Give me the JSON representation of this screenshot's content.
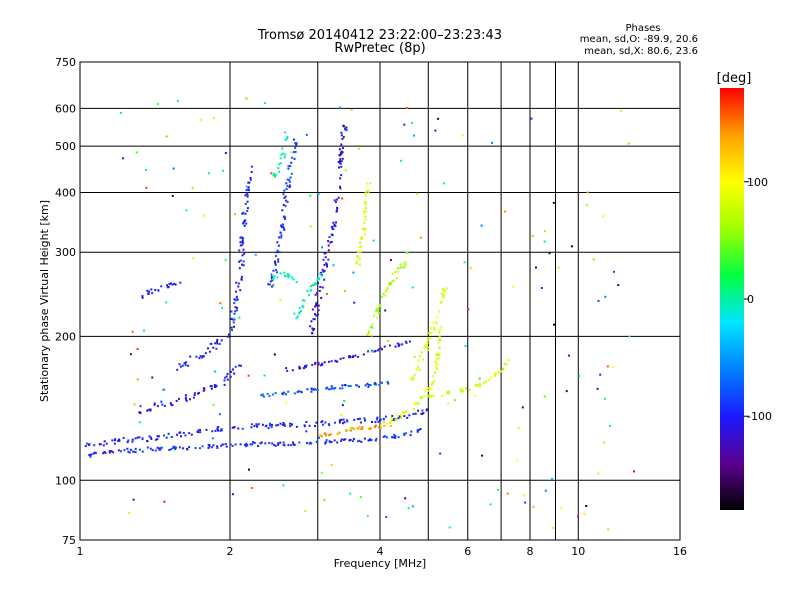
{
  "chart_data": {
    "type": "scatter",
    "title": "Tromsø 20140412 23:22:00–23:23:43",
    "subtitle": "RwPretec (8p)",
    "xlabel": "Frequency [MHz]",
    "ylabel": "Stationary phase Virtual Height [km]",
    "x_scale": "log",
    "y_scale": "log",
    "xlim": [
      1,
      16
    ],
    "ylim": [
      75,
      750
    ],
    "x_ticks": [
      1,
      2,
      4,
      6,
      8,
      10,
      16
    ],
    "x_tick_labels": [
      "1",
      "2",
      "4",
      "6",
      "8",
      "10",
      "16"
    ],
    "x_minor_grid": [
      3,
      5,
      7,
      9
    ],
    "y_ticks": [
      75,
      100,
      200,
      300,
      400,
      500,
      600,
      750
    ],
    "y_tick_labels": [
      "75",
      "100",
      "200",
      "300",
      "400",
      "500",
      "600",
      "750"
    ],
    "grid": true,
    "colorbar": {
      "label": "[deg]",
      "range": [
        -180,
        180
      ],
      "ticks": [
        100,
        0,
        -100
      ],
      "tick_labels": [
        "100",
        "0",
        "-100"
      ],
      "colors": [
        "#000000",
        "#5a0090",
        "#1a1aff",
        "#0080ff",
        "#00e5ff",
        "#00ff40",
        "#a0ff00",
        "#ffff00",
        "#ffa000",
        "#ff0000"
      ]
    },
    "stats": {
      "title": "Phases",
      "line1": "mean, sd,O: -89.9, 20.6",
      "line2": "mean, sd,X:  80.6, 23.6"
    },
    "traces": [
      {
        "points": [
          [
            1.02,
            112
          ],
          [
            1.06,
            113
          ],
          [
            1.1,
            114
          ],
          [
            1.2,
            115
          ],
          [
            1.35,
            116
          ],
          [
            1.5,
            116.5
          ],
          [
            1.7,
            117
          ],
          [
            1.9,
            118
          ],
          [
            2.0,
            118.5
          ],
          [
            2.2,
            119
          ],
          [
            2.5,
            119
          ],
          [
            2.8,
            120
          ],
          [
            3.2,
            120.5
          ],
          [
            3.6,
            121
          ],
          [
            4.0,
            122
          ],
          [
            4.4,
            124
          ],
          [
            4.8,
            127
          ]
        ],
        "phase": -95,
        "spread": 0.012
      },
      {
        "points": [
          [
            1.02,
            118
          ],
          [
            1.1,
            119
          ],
          [
            1.2,
            121
          ],
          [
            1.35,
            122
          ],
          [
            1.5,
            124
          ],
          [
            1.7,
            126
          ],
          [
            1.9,
            128
          ],
          [
            2.1,
            129
          ],
          [
            2.4,
            130
          ],
          [
            2.8,
            131
          ],
          [
            3.2,
            132
          ],
          [
            3.6,
            133
          ],
          [
            4.0,
            134
          ],
          [
            4.5,
            136
          ],
          [
            5.0,
            140
          ]
        ],
        "phase": -100,
        "spread": 0.015
      },
      {
        "points": [
          [
            1.3,
            140
          ],
          [
            1.5,
            145
          ],
          [
            1.7,
            150
          ],
          [
            1.9,
            158
          ],
          [
            2.0,
            165
          ],
          [
            2.1,
            175
          ]
        ],
        "phase": -105,
        "spread": 0.02
      },
      {
        "points": [
          [
            1.55,
            170
          ],
          [
            1.7,
            180
          ],
          [
            1.85,
            190
          ],
          [
            2.0,
            200
          ],
          [
            2.05,
            230
          ],
          [
            2.1,
            270
          ],
          [
            2.12,
            320
          ],
          [
            2.15,
            380
          ],
          [
            2.2,
            450
          ]
        ],
        "phase": -100,
        "spread": 0.025
      },
      {
        "points": [
          [
            2.4,
            250
          ],
          [
            2.5,
            300
          ],
          [
            2.55,
            350
          ],
          [
            2.6,
            400
          ],
          [
            2.65,
            450
          ],
          [
            2.7,
            520
          ]
        ],
        "phase": -90,
        "spread": 0.025
      },
      {
        "points": [
          [
            2.9,
            200
          ],
          [
            3.0,
            240
          ],
          [
            3.1,
            280
          ],
          [
            3.2,
            330
          ],
          [
            3.3,
            400
          ],
          [
            3.35,
            480
          ],
          [
            3.4,
            560
          ]
        ],
        "phase": -110,
        "spread": 0.025
      },
      {
        "points": [
          [
            2.3,
            150
          ],
          [
            2.6,
            152
          ],
          [
            3.0,
            155
          ],
          [
            3.4,
            157
          ],
          [
            3.8,
            158
          ],
          [
            4.2,
            160
          ]
        ],
        "phase": -80,
        "spread": 0.01
      },
      {
        "points": [
          [
            2.6,
            170
          ],
          [
            3.0,
            175
          ],
          [
            3.4,
            180
          ],
          [
            3.8,
            185
          ],
          [
            4.2,
            190
          ],
          [
            4.6,
            195
          ]
        ],
        "phase": -110,
        "spread": 0.012
      },
      {
        "points": [
          [
            2.7,
            220
          ],
          [
            2.9,
            250
          ],
          [
            3.1,
            275
          ]
        ],
        "phase": 0,
        "spread": 0.015
      },
      {
        "points": [
          [
            2.4,
            265
          ],
          [
            2.6,
            270
          ],
          [
            2.75,
            260
          ]
        ],
        "phase": -10,
        "spread": 0.015
      },
      {
        "points": [
          [
            3.0,
            124
          ],
          [
            3.3,
            126
          ],
          [
            3.6,
            128
          ],
          [
            3.9,
            129
          ],
          [
            4.2,
            130
          ]
        ],
        "phase": 140,
        "spread": 0.012
      },
      {
        "points": [
          [
            4.0,
            130
          ],
          [
            4.3,
            135
          ],
          [
            4.6,
            140
          ],
          [
            4.9,
            150
          ],
          [
            5.1,
            160
          ],
          [
            5.2,
            175
          ],
          [
            5.25,
            190
          ],
          [
            5.3,
            210
          ]
        ],
        "phase": 80,
        "spread": 0.015
      },
      {
        "points": [
          [
            3.8,
            200
          ],
          [
            4.0,
            230
          ],
          [
            4.2,
            260
          ],
          [
            4.4,
            280
          ],
          [
            4.6,
            300
          ]
        ],
        "phase": 60,
        "spread": 0.02
      },
      {
        "points": [
          [
            3.6,
            280
          ],
          [
            3.7,
            330
          ],
          [
            3.75,
            380
          ],
          [
            3.8,
            420
          ]
        ],
        "phase": 80,
        "spread": 0.02
      },
      {
        "points": [
          [
            5.0,
            150
          ],
          [
            5.5,
            152
          ],
          [
            6.0,
            155
          ],
          [
            6.5,
            160
          ],
          [
            7.0,
            170
          ],
          [
            7.3,
            180
          ]
        ],
        "phase": 80,
        "spread": 0.01
      },
      {
        "points": [
          [
            4.6,
            160
          ],
          [
            4.8,
            175
          ],
          [
            5.0,
            195
          ],
          [
            5.2,
            220
          ],
          [
            5.4,
            250
          ]
        ],
        "phase": 90,
        "spread": 0.018
      },
      {
        "points": [
          [
            1.3,
            240
          ],
          [
            1.4,
            250
          ],
          [
            1.5,
            255
          ],
          [
            1.6,
            260
          ]
        ],
        "phase": -100,
        "spread": 0.015
      },
      {
        "points": [
          [
            2.45,
            430
          ],
          [
            2.55,
            470
          ],
          [
            2.6,
            530
          ]
        ],
        "phase": 0,
        "spread": 0.02
      }
    ]
  }
}
